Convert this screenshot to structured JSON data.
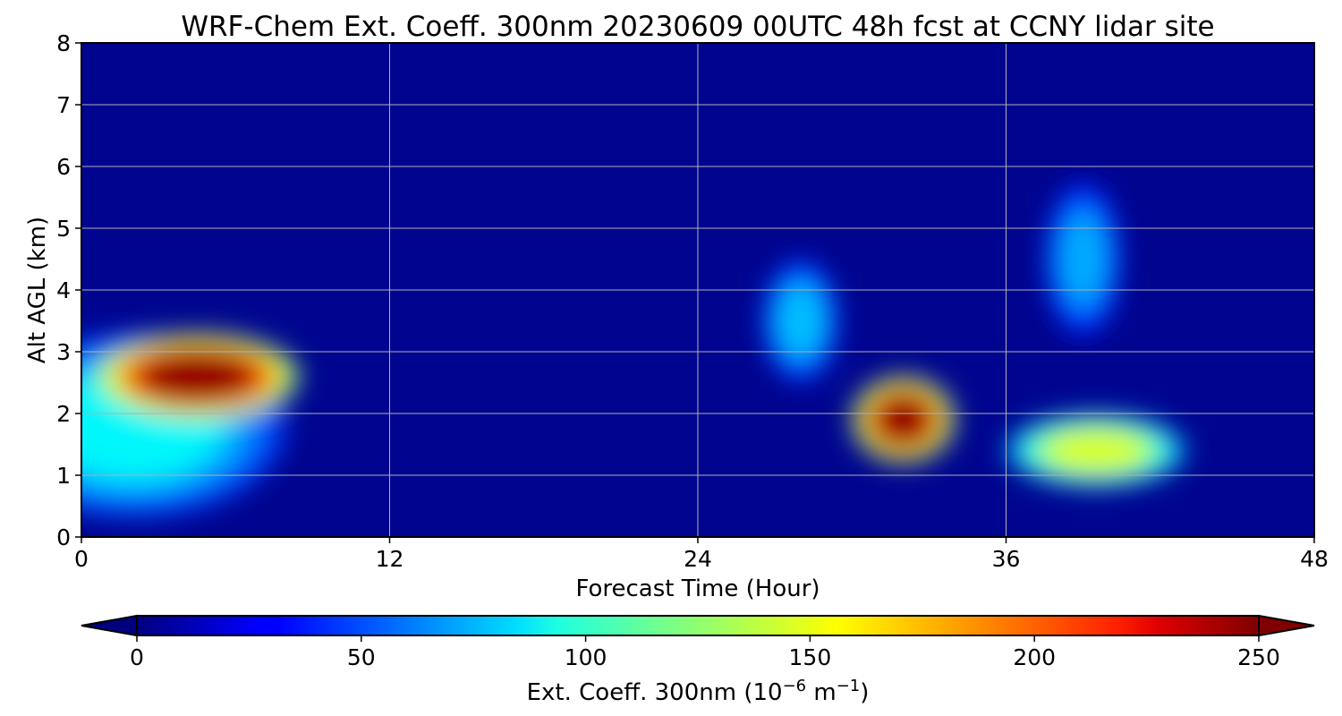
{
  "chart_data": {
    "type": "heatmap",
    "title": "WRF-Chem Ext. Coeff. 300nm  20230609 00UTC 48h fcst at CCNY lidar site",
    "xlabel": "Forecast Time (Hour)",
    "ylabel": "Alt AGL (km)",
    "xlim": [
      0,
      48
    ],
    "ylim": [
      0,
      8
    ],
    "x_ticks": [
      "0",
      "12",
      "24",
      "36",
      "48"
    ],
    "y_ticks": [
      "0",
      "1",
      "2",
      "3",
      "4",
      "5",
      "6",
      "7",
      "8"
    ],
    "grid": true,
    "colormap": "jet",
    "colorbar": {
      "orientation": "horizontal",
      "placement": "bottom",
      "extend": "both",
      "range": [
        0,
        250
      ],
      "ticks": [
        "0",
        "50",
        "100",
        "150",
        "200",
        "250"
      ],
      "label": "Ext. Coeff. 300nm  (10",
      "label_exp1": "−6",
      "label_mid": " m",
      "label_exp2": "−1",
      "label_end": ")"
    },
    "features": [
      {
        "x_center": 4.5,
        "y_center": 2.6,
        "x_extent": [
          1,
          9
        ],
        "y_extent": [
          2.0,
          3.4
        ],
        "peak_value": 255
      },
      {
        "x_center": 32.0,
        "y_center": 1.9,
        "x_extent": [
          30,
          34
        ],
        "y_extent": [
          1.2,
          2.6
        ],
        "peak_value": 255
      },
      {
        "x_center": 39.5,
        "y_center": 1.4,
        "x_extent": [
          37,
          44
        ],
        "y_extent": [
          0.8,
          2.0
        ],
        "peak_value": 150
      },
      {
        "x_center": 2.0,
        "y_center": 1.8,
        "x_extent": [
          0,
          12
        ],
        "y_extent": [
          1.5,
          4.5
        ],
        "peak_value": 95
      },
      {
        "x_center": 28.0,
        "y_center": 3.5,
        "x_extent": [
          27,
          30
        ],
        "y_extent": [
          2.5,
          4.5
        ],
        "peak_value": 80
      },
      {
        "x_center": 39.0,
        "y_center": 4.5,
        "x_extent": [
          38,
          41
        ],
        "y_extent": [
          3.0,
          5.5
        ],
        "peak_value": 75
      }
    ]
  }
}
